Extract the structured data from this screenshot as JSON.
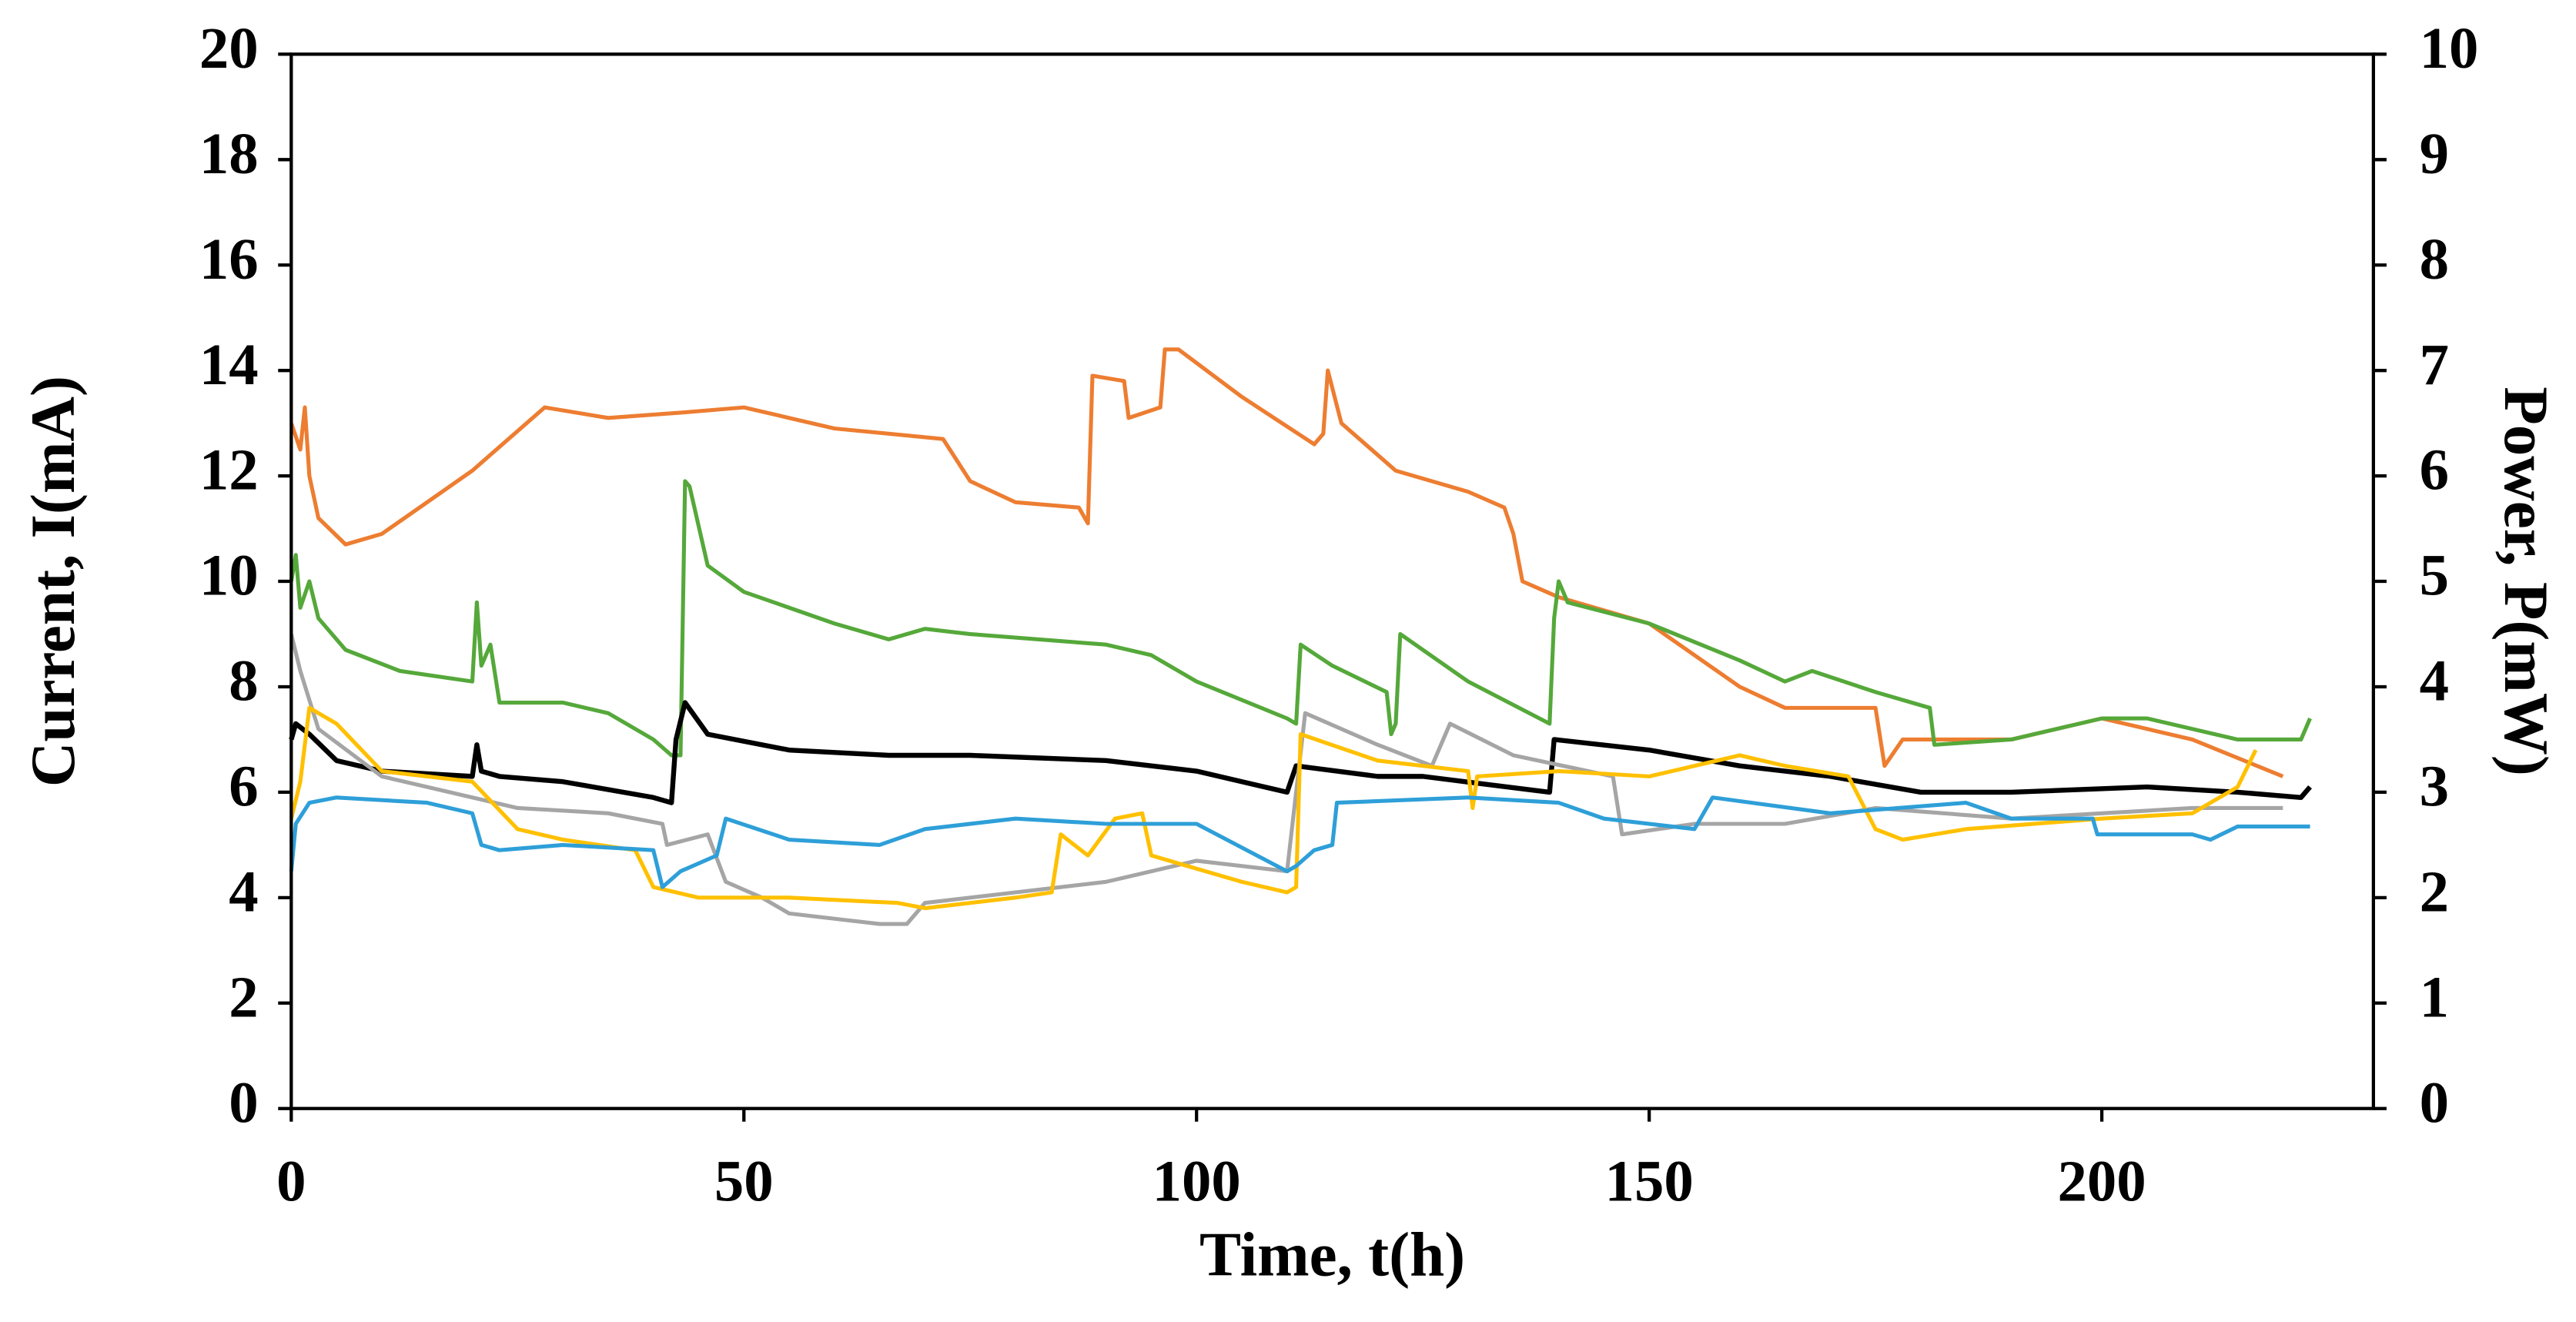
{
  "chart_data": {
    "type": "line",
    "x_label": "Time, t(h)",
    "y_label": "Current, I(mA)",
    "y2_label": "Power, P(mW)",
    "xlim": [
      0,
      230
    ],
    "xticks": [
      0,
      50,
      100,
      150,
      200
    ],
    "ylim": [
      0,
      20
    ],
    "yticks": [
      0,
      2,
      4,
      6,
      8,
      10,
      12,
      14,
      16,
      18,
      20
    ],
    "y2lim": [
      0,
      10
    ],
    "y2ticks": [
      0,
      1,
      2,
      3,
      4,
      5,
      6,
      7,
      8,
      9,
      10
    ],
    "series": [
      {
        "color": "#ed7d31",
        "x": [
          0,
          1,
          1.5,
          2,
          3,
          6,
          10,
          15,
          20,
          22,
          28,
          35,
          43,
          50,
          60,
          72,
          75,
          80,
          87,
          88,
          88.5,
          92,
          92.5,
          96,
          96.5,
          98,
          105,
          113,
          114,
          114.5,
          116,
          122,
          130,
          134,
          135,
          136,
          140,
          150,
          160,
          165,
          175,
          176,
          178,
          190,
          200,
          210,
          220
        ],
        "values": [
          13,
          12.5,
          13.3,
          12,
          11.2,
          10.7,
          10.9,
          11.5,
          12.1,
          12.4,
          13.3,
          13.1,
          13.2,
          13.3,
          12.9,
          12.7,
          11.9,
          11.5,
          11.4,
          11.1,
          13.9,
          13.8,
          13.1,
          13.3,
          14.4,
          14.4,
          13.5,
          12.6,
          12.8,
          14,
          13,
          12.1,
          11.7,
          11.4,
          10.9,
          10,
          9.7,
          9.2,
          8,
          7.6,
          7.6,
          6.5,
          7,
          7,
          7.4,
          7,
          6.3
        ]
      },
      {
        "color": "#55a83a",
        "x": [
          0,
          0.5,
          1,
          2,
          3,
          6,
          12,
          20,
          20.5,
          21,
          22,
          23,
          30,
          35,
          40,
          42,
          43,
          43.5,
          44,
          46,
          50,
          60,
          66,
          70,
          75,
          90,
          95,
          100,
          110,
          111,
          111.5,
          115,
          121,
          121.5,
          122,
          122.5,
          130,
          139,
          139.5,
          140,
          141,
          150,
          160,
          165,
          168,
          175,
          181,
          181.5,
          190,
          200,
          205,
          215,
          222,
          223
        ],
        "values": [
          10,
          10.5,
          9.5,
          10,
          9.3,
          8.7,
          8.3,
          8.1,
          9.6,
          8.4,
          8.8,
          7.7,
          7.7,
          7.5,
          7,
          6.7,
          6.7,
          11.9,
          11.8,
          10.3,
          9.8,
          9.2,
          8.9,
          9.1,
          9,
          8.8,
          8.6,
          8.1,
          7.4,
          7.3,
          8.8,
          8.4,
          7.9,
          7.1,
          7.3,
          9,
          8.1,
          7.3,
          9.3,
          10,
          9.6,
          9.2,
          8.5,
          8.1,
          8.3,
          7.9,
          7.6,
          6.9,
          7,
          7.4,
          7.4,
          7,
          7,
          7.4
        ]
      },
      {
        "color": "#000000",
        "x": [
          0,
          0.5,
          2,
          5,
          10,
          20,
          20.5,
          21,
          23,
          30,
          40,
          42,
          42.5,
          43.5,
          46,
          55,
          66,
          75,
          90,
          100,
          110,
          111,
          120,
          125,
          139,
          139.5,
          150,
          160,
          170,
          180,
          190,
          205,
          215,
          222,
          223
        ],
        "values": [
          7,
          7.3,
          7.1,
          6.6,
          6.4,
          6.3,
          6.9,
          6.4,
          6.3,
          6.2,
          5.9,
          5.8,
          7,
          7.7,
          7.1,
          6.8,
          6.7,
          6.7,
          6.6,
          6.4,
          6,
          6.5,
          6.3,
          6.3,
          6,
          7,
          6.8,
          6.5,
          6.3,
          6,
          6,
          6.1,
          6,
          5.9,
          6.1
        ]
      },
      {
        "color": "#a5a5a5",
        "x": [
          0,
          1,
          3,
          10,
          20,
          25,
          35,
          41,
          41.5,
          46,
          48,
          52,
          55,
          60,
          65,
          68,
          70,
          80,
          90,
          100,
          110,
          112,
          120,
          126,
          128,
          135,
          146,
          147,
          155,
          165,
          175,
          190,
          200,
          210,
          220
        ],
        "values": [
          9,
          8.3,
          7.2,
          6.3,
          5.9,
          5.7,
          5.6,
          5.4,
          5,
          5.2,
          4.3,
          4,
          3.7,
          3.6,
          3.5,
          3.5,
          3.9,
          4.1,
          4.3,
          4.7,
          4.5,
          7.5,
          6.9,
          6.5,
          7.3,
          6.7,
          6.3,
          5.2,
          5.4,
          5.4,
          5.7,
          5.5,
          5.6,
          5.7,
          5.7
        ]
      },
      {
        "color": "#ffc000",
        "x": [
          0,
          1,
          2,
          5,
          10,
          20,
          25,
          30,
          38,
          40,
          45,
          55,
          67,
          70,
          80,
          84,
          85,
          88,
          91,
          94,
          95,
          105,
          110,
          111,
          111.5,
          120,
          130,
          130.5,
          131,
          140,
          150,
          160,
          165,
          172,
          175,
          178,
          185,
          200,
          210,
          215,
          217
        ],
        "values": [
          5.5,
          6.2,
          7.6,
          7.3,
          6.4,
          6.2,
          5.3,
          5.1,
          4.9,
          4.2,
          4,
          4,
          3.9,
          3.8,
          4,
          4.1,
          5.2,
          4.8,
          5.5,
          5.6,
          4.8,
          4.3,
          4.1,
          4.2,
          7.1,
          6.6,
          6.4,
          5.7,
          6.3,
          6.4,
          6.3,
          6.7,
          6.5,
          6.3,
          5.3,
          5.1,
          5.3,
          5.5,
          5.6,
          6.1,
          6.8
        ]
      },
      {
        "color": "#2e9fd8",
        "x": [
          0,
          0.5,
          2,
          5,
          15,
          20,
          21,
          23,
          30,
          40,
          41,
          43,
          47,
          48,
          55,
          65,
          70,
          80,
          90,
          100,
          110,
          111,
          113,
          115,
          115.5,
          130,
          140,
          145,
          155,
          157,
          170,
          185,
          190,
          199,
          199.5,
          210,
          212,
          215,
          223
        ],
        "values": [
          4.5,
          5.4,
          5.8,
          5.9,
          5.8,
          5.6,
          5,
          4.9,
          5,
          4.9,
          4.2,
          4.5,
          4.8,
          5.5,
          5.1,
          5,
          5.3,
          5.5,
          5.4,
          5.4,
          4.5,
          4.6,
          4.9,
          5,
          5.8,
          5.9,
          5.8,
          5.5,
          5.3,
          5.9,
          5.6,
          5.8,
          5.5,
          5.5,
          5.2,
          5.2,
          5.1,
          5.35,
          5.35
        ]
      }
    ]
  }
}
